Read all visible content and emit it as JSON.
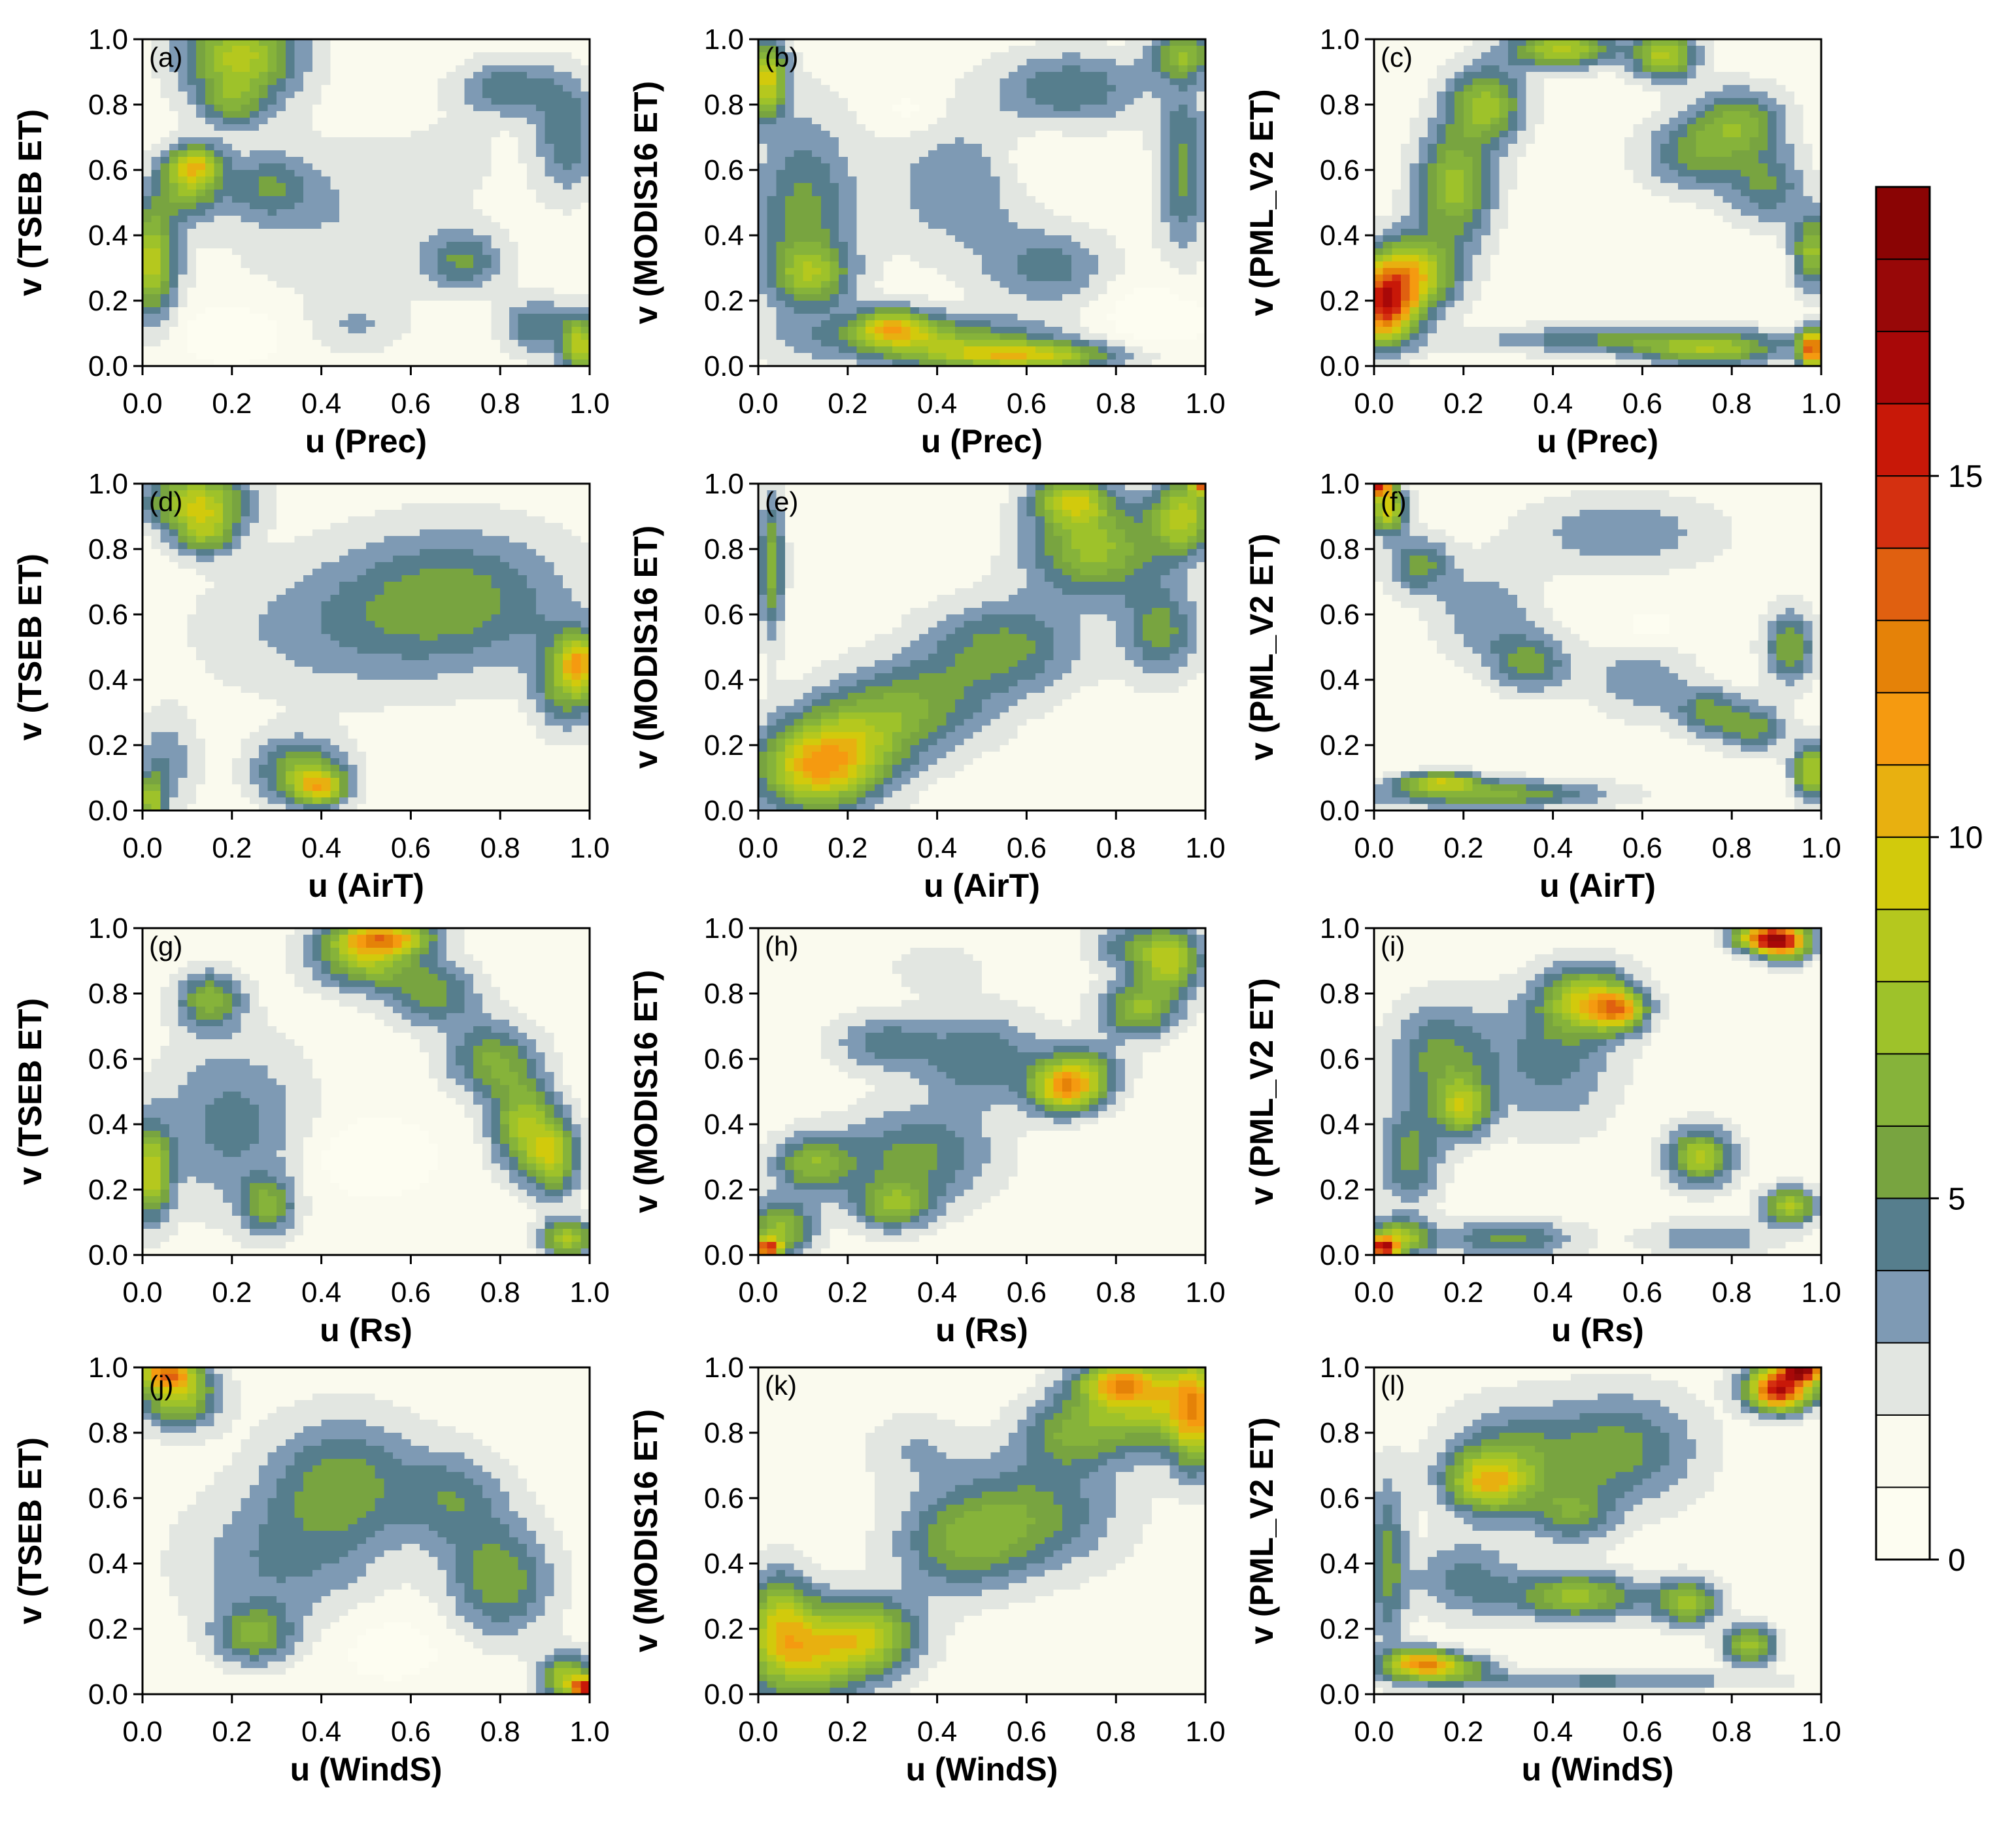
{
  "chart_data": {
    "type": "heatmap",
    "subtype": "filled-contour copula density grid",
    "layout": "4 rows x 3 columns",
    "x_ticks": [
      "0.0",
      "0.2",
      "0.4",
      "0.6",
      "0.8",
      "1.0"
    ],
    "y_ticks": [
      "0.0",
      "0.2",
      "0.4",
      "0.6",
      "0.8",
      "1.0"
    ],
    "xlim": [
      0,
      1
    ],
    "ylim": [
      0,
      1
    ],
    "colorbar": {
      "range": [
        0,
        19
      ],
      "levels": [
        0,
        1,
        2,
        3,
        4,
        5,
        6,
        7,
        8,
        9,
        10,
        11,
        12,
        13,
        14,
        15,
        16,
        17,
        18,
        19
      ],
      "tick_values": [
        0,
        5,
        10,
        15
      ],
      "tick_labels": [
        "0",
        "5",
        "10",
        "15"
      ],
      "colors": [
        "#fdfdf1",
        "#fafaee",
        "#e2e6e1",
        "#7e9ab4",
        "#567e8d",
        "#78a440",
        "#86b33a",
        "#9ec22a",
        "#b5c81e",
        "#d2ca0c",
        "#e8b010",
        "#f59a10",
        "#e58208",
        "#e06010",
        "#d43010",
        "#c81808",
        "#a80808",
        "#980808",
        "#8a0404"
      ]
    },
    "panels": [
      {
        "tag": "(a)",
        "xlabel": "u (Prec)",
        "ylabel": "v (TSEB ET)",
        "blobs": [
          [
            0.22,
            0.95,
            0.09,
            0.1,
            7
          ],
          [
            0.2,
            0.8,
            0.05,
            0.05,
            3
          ],
          [
            0.1,
            0.55,
            0.05,
            0.07,
            5
          ],
          [
            0.12,
            0.62,
            0.04,
            0.04,
            6
          ],
          [
            0.02,
            0.32,
            0.04,
            0.12,
            7
          ],
          [
            0.28,
            0.55,
            0.07,
            0.07,
            3
          ],
          [
            0.45,
            0.45,
            0.2,
            0.18,
            1.5
          ],
          [
            0.7,
            0.65,
            0.07,
            0.07,
            0.8
          ],
          [
            0.48,
            0.12,
            0.07,
            0.06,
            1.5
          ],
          [
            0.82,
            0.85,
            0.08,
            0.06,
            3.5
          ],
          [
            0.95,
            0.7,
            0.05,
            0.12,
            3.5
          ],
          [
            0.72,
            0.32,
            0.06,
            0.06,
            3.5
          ],
          [
            0.88,
            0.12,
            0.05,
            0.06,
            3.5
          ],
          [
            0.98,
            0.06,
            0.03,
            0.07,
            7
          ],
          [
            0.2,
            0.1,
            0.08,
            0.06,
            -1.5
          ]
        ]
      },
      {
        "tag": "(b)",
        "xlabel": "u (Prec)",
        "ylabel": "v (MODIS16 ET)",
        "blobs": [
          [
            0.1,
            0.45,
            0.08,
            0.22,
            4
          ],
          [
            0.02,
            0.88,
            0.03,
            0.08,
            8
          ],
          [
            0.4,
            0.08,
            0.18,
            0.05,
            5
          ],
          [
            0.3,
            0.12,
            0.06,
            0.04,
            6.5
          ],
          [
            0.6,
            0.03,
            0.15,
            0.03,
            7
          ],
          [
            0.12,
            0.28,
            0.06,
            0.06,
            4
          ],
          [
            0.65,
            0.3,
            0.1,
            0.08,
            3
          ],
          [
            0.7,
            0.85,
            0.12,
            0.08,
            3.5
          ],
          [
            0.45,
            0.55,
            0.12,
            0.15,
            2.5
          ],
          [
            0.95,
            0.6,
            0.04,
            0.18,
            4
          ],
          [
            0.95,
            0.95,
            0.05,
            0.05,
            5
          ],
          [
            0.88,
            0.15,
            0.08,
            0.08,
            -1.5
          ],
          [
            0.62,
            0.62,
            0.07,
            0.08,
            -1
          ],
          [
            0.34,
            0.78,
            0.05,
            0.05,
            -1
          ]
        ]
      },
      {
        "tag": "(c)",
        "xlabel": "u (Prec)",
        "ylabel": "v (PML_V2 ET)",
        "blobs": [
          [
            0.02,
            0.18,
            0.05,
            0.08,
            12
          ],
          [
            0.08,
            0.28,
            0.07,
            0.08,
            8
          ],
          [
            0.18,
            0.55,
            0.06,
            0.12,
            6
          ],
          [
            0.25,
            0.8,
            0.06,
            0.08,
            6
          ],
          [
            0.42,
            0.97,
            0.08,
            0.04,
            7
          ],
          [
            0.65,
            0.95,
            0.05,
            0.05,
            7
          ],
          [
            0.72,
            0.65,
            0.08,
            0.08,
            4
          ],
          [
            0.82,
            0.75,
            0.07,
            0.07,
            4.5
          ],
          [
            0.88,
            0.55,
            0.06,
            0.08,
            3.5
          ],
          [
            0.6,
            0.08,
            0.25,
            0.03,
            4
          ],
          [
            0.75,
            0.04,
            0.1,
            0.03,
            5
          ],
          [
            0.98,
            0.35,
            0.03,
            0.08,
            6
          ],
          [
            0.98,
            0.05,
            0.02,
            0.04,
            12
          ]
        ]
      },
      {
        "tag": "(d)",
        "xlabel": "u (AirT)",
        "ylabel": "v (TSEB ET)",
        "blobs": [
          [
            0.12,
            0.95,
            0.08,
            0.06,
            7
          ],
          [
            0.14,
            0.85,
            0.05,
            0.05,
            5
          ],
          [
            0.35,
            0.12,
            0.07,
            0.07,
            5
          ],
          [
            0.4,
            0.07,
            0.04,
            0.04,
            6.5
          ],
          [
            0.7,
            0.65,
            0.18,
            0.15,
            4
          ],
          [
            0.95,
            0.4,
            0.05,
            0.1,
            5
          ],
          [
            0.98,
            0.45,
            0.03,
            0.06,
            6
          ],
          [
            0.05,
            0.15,
            0.05,
            0.1,
            2.5
          ],
          [
            0.4,
            0.55,
            0.2,
            0.15,
            1.8
          ],
          [
            0.02,
            0.03,
            0.02,
            0.05,
            6
          ]
        ]
      },
      {
        "tag": "(e)",
        "xlabel": "u (AirT)",
        "ylabel": "v (MODIS16 ET)",
        "blobs": [
          [
            0.12,
            0.12,
            0.09,
            0.09,
            7
          ],
          [
            0.2,
            0.2,
            0.1,
            0.1,
            5
          ],
          [
            0.35,
            0.32,
            0.12,
            0.1,
            4
          ],
          [
            0.55,
            0.5,
            0.12,
            0.1,
            4
          ],
          [
            0.75,
            0.8,
            0.1,
            0.1,
            6
          ],
          [
            0.7,
            0.95,
            0.06,
            0.05,
            6.5
          ],
          [
            0.9,
            0.55,
            0.06,
            0.1,
            4
          ],
          [
            0.95,
            0.9,
            0.05,
            0.08,
            7
          ],
          [
            1.0,
            1.0,
            0.02,
            0.02,
            12
          ],
          [
            0.03,
            0.75,
            0.02,
            0.15,
            5
          ]
        ]
      },
      {
        "tag": "(f)",
        "xlabel": "u (AirT)",
        "ylabel": "v (PML_V2 ET)",
        "blobs": [
          [
            0.03,
            0.92,
            0.03,
            0.05,
            8
          ],
          [
            0.01,
            0.99,
            0.02,
            0.02,
            12
          ],
          [
            0.1,
            0.75,
            0.05,
            0.06,
            4
          ],
          [
            0.25,
            0.6,
            0.08,
            0.1,
            2.5
          ],
          [
            0.35,
            0.45,
            0.06,
            0.06,
            4
          ],
          [
            0.55,
            0.85,
            0.15,
            0.08,
            2.5
          ],
          [
            0.6,
            0.4,
            0.08,
            0.08,
            2.5
          ],
          [
            0.75,
            0.3,
            0.05,
            0.05,
            4
          ],
          [
            0.85,
            0.25,
            0.05,
            0.05,
            4
          ],
          [
            0.93,
            0.5,
            0.04,
            0.08,
            4.5
          ],
          [
            0.25,
            0.05,
            0.18,
            0.03,
            5
          ],
          [
            0.15,
            0.09,
            0.06,
            0.02,
            6
          ],
          [
            0.98,
            0.12,
            0.03,
            0.06,
            7
          ],
          [
            0.62,
            0.55,
            0.05,
            0.05,
            -1
          ]
        ]
      },
      {
        "tag": "(g)",
        "xlabel": "u (Rs)",
        "ylabel": "v (TSEB ET)",
        "blobs": [
          [
            0.5,
            0.92,
            0.08,
            0.07,
            7
          ],
          [
            0.55,
            0.97,
            0.07,
            0.03,
            7
          ],
          [
            0.02,
            0.25,
            0.03,
            0.1,
            7
          ],
          [
            0.15,
            0.78,
            0.05,
            0.06,
            5
          ],
          [
            0.28,
            0.15,
            0.04,
            0.06,
            4.5
          ],
          [
            0.85,
            0.4,
            0.05,
            0.1,
            6
          ],
          [
            0.92,
            0.3,
            0.04,
            0.08,
            6.5
          ],
          [
            0.95,
            0.05,
            0.04,
            0.04,
            7
          ],
          [
            0.78,
            0.6,
            0.07,
            0.08,
            4.5
          ],
          [
            0.65,
            0.8,
            0.07,
            0.07,
            4
          ],
          [
            0.2,
            0.4,
            0.12,
            0.18,
            3
          ],
          [
            0.5,
            0.3,
            0.1,
            0.08,
            -1.5
          ]
        ]
      },
      {
        "tag": "(h)",
        "xlabel": "u (Rs)",
        "ylabel": "v (MODIS16 ET)",
        "blobs": [
          [
            0.05,
            0.08,
            0.05,
            0.06,
            6
          ],
          [
            0.02,
            0.02,
            0.02,
            0.02,
            12
          ],
          [
            0.3,
            0.15,
            0.06,
            0.05,
            5
          ],
          [
            0.12,
            0.28,
            0.06,
            0.06,
            5
          ],
          [
            0.35,
            0.3,
            0.12,
            0.1,
            4
          ],
          [
            0.72,
            0.55,
            0.06,
            0.06,
            6
          ],
          [
            0.68,
            0.5,
            0.05,
            0.05,
            6.5
          ],
          [
            0.85,
            0.75,
            0.06,
            0.06,
            5.5
          ],
          [
            0.92,
            0.9,
            0.05,
            0.07,
            7
          ],
          [
            0.82,
            0.95,
            0.06,
            0.05,
            3
          ],
          [
            0.5,
            0.6,
            0.1,
            0.1,
            3.5
          ],
          [
            0.28,
            0.65,
            0.08,
            0.06,
            3
          ],
          [
            0.4,
            0.88,
            0.07,
            0.05,
            1.5
          ]
        ]
      },
      {
        "tag": "(i)",
        "xlabel": "u (Rs)",
        "ylabel": "v (PML_V2 ET)",
        "blobs": [
          [
            0.48,
            0.78,
            0.07,
            0.07,
            7
          ],
          [
            0.55,
            0.75,
            0.04,
            0.04,
            7.5
          ],
          [
            0.88,
            0.97,
            0.05,
            0.03,
            12
          ],
          [
            0.92,
            0.95,
            0.04,
            0.04,
            7
          ],
          [
            0.73,
            0.3,
            0.05,
            0.06,
            7
          ],
          [
            0.93,
            0.15,
            0.04,
            0.04,
            7
          ],
          [
            0.2,
            0.45,
            0.04,
            0.06,
            6
          ],
          [
            0.05,
            0.05,
            0.05,
            0.04,
            7
          ],
          [
            0.02,
            0.02,
            0.02,
            0.02,
            12
          ],
          [
            0.15,
            0.6,
            0.08,
            0.12,
            4
          ],
          [
            0.4,
            0.6,
            0.1,
            0.15,
            3
          ],
          [
            0.3,
            0.05,
            0.1,
            0.04,
            4
          ],
          [
            0.75,
            0.05,
            0.1,
            0.04,
            2.5
          ],
          [
            0.08,
            0.3,
            0.05,
            0.1,
            4
          ]
        ]
      },
      {
        "tag": "(j)",
        "xlabel": "u (WindS)",
        "ylabel": "v (TSEB ET)",
        "blobs": [
          [
            0.08,
            0.92,
            0.06,
            0.07,
            7
          ],
          [
            0.05,
            0.98,
            0.04,
            0.03,
            8
          ],
          [
            0.25,
            0.18,
            0.06,
            0.06,
            4.5
          ],
          [
            0.45,
            0.65,
            0.12,
            0.14,
            4
          ],
          [
            0.8,
            0.35,
            0.08,
            0.12,
            4.5
          ],
          [
            0.95,
            0.05,
            0.04,
            0.05,
            7
          ],
          [
            0.99,
            0.02,
            0.02,
            0.02,
            12
          ],
          [
            0.3,
            0.4,
            0.15,
            0.15,
            2.5
          ],
          [
            0.55,
            0.15,
            0.1,
            0.08,
            -1
          ],
          [
            0.7,
            0.6,
            0.08,
            0.1,
            3
          ]
        ]
      },
      {
        "tag": "(k)",
        "xlabel": "u (WindS)",
        "ylabel": "v (MODIS16 ET)",
        "blobs": [
          [
            0.1,
            0.12,
            0.1,
            0.1,
            7
          ],
          [
            0.25,
            0.18,
            0.08,
            0.08,
            6
          ],
          [
            0.05,
            0.25,
            0.05,
            0.1,
            5
          ],
          [
            0.88,
            0.9,
            0.1,
            0.1,
            7
          ],
          [
            0.8,
            0.95,
            0.06,
            0.04,
            6
          ],
          [
            0.98,
            0.85,
            0.04,
            0.12,
            7
          ],
          [
            0.6,
            0.55,
            0.14,
            0.12,
            4
          ],
          [
            0.45,
            0.45,
            0.1,
            0.1,
            3.5
          ],
          [
            0.7,
            0.8,
            0.08,
            0.08,
            4
          ],
          [
            0.35,
            0.75,
            0.08,
            0.08,
            1.5
          ]
        ]
      },
      {
        "tag": "(l)",
        "xlabel": "u (WindS)",
        "ylabel": "v (PML_V2 ET)",
        "blobs": [
          [
            0.92,
            0.95,
            0.06,
            0.05,
            9
          ],
          [
            0.96,
            0.99,
            0.03,
            0.02,
            12
          ],
          [
            0.9,
            0.92,
            0.04,
            0.04,
            7
          ],
          [
            0.45,
            0.3,
            0.1,
            0.05,
            6
          ],
          [
            0.7,
            0.28,
            0.05,
            0.05,
            6
          ],
          [
            0.25,
            0.65,
            0.06,
            0.06,
            6
          ],
          [
            0.84,
            0.15,
            0.04,
            0.04,
            6.5
          ],
          [
            0.15,
            0.08,
            0.08,
            0.03,
            6
          ],
          [
            0.1,
            0.1,
            0.05,
            0.03,
            6.5
          ],
          [
            0.55,
            0.75,
            0.12,
            0.12,
            4
          ],
          [
            0.3,
            0.7,
            0.1,
            0.12,
            4
          ],
          [
            0.2,
            0.35,
            0.08,
            0.08,
            3
          ],
          [
            0.03,
            0.4,
            0.03,
            0.18,
            4
          ],
          [
            0.5,
            0.04,
            0.25,
            0.02,
            3
          ],
          [
            0.45,
            0.55,
            0.06,
            0.06,
            3.5
          ]
        ]
      }
    ]
  }
}
